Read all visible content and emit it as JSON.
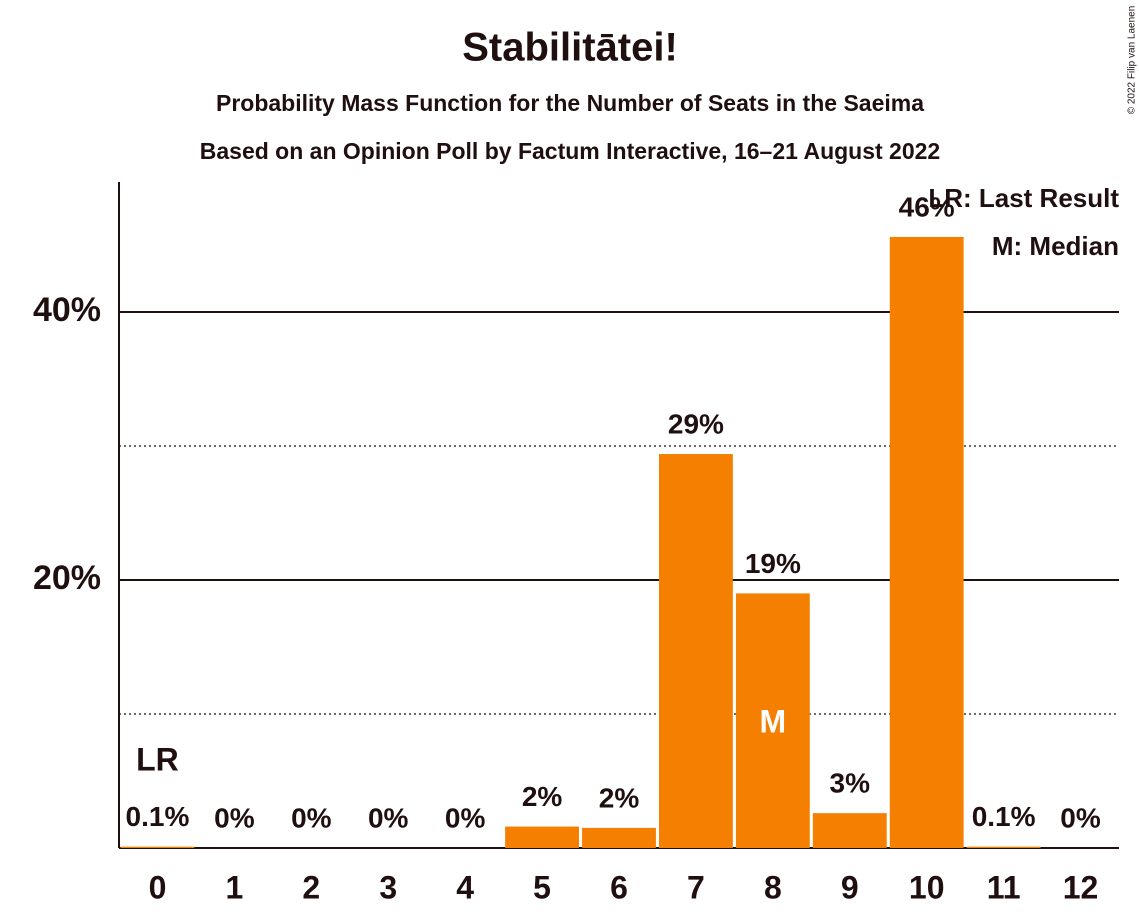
{
  "chart_data": {
    "type": "bar",
    "title": "Stabilitātei!",
    "subtitle": "Probability Mass Function for the Number of Seats in the Saeima",
    "subtitle2": "Based on an Opinion Poll by Factum Interactive, 16–21 August 2022",
    "copyright": "© 2022 Filip van Laenen",
    "categories": [
      "0",
      "1",
      "2",
      "3",
      "4",
      "5",
      "6",
      "7",
      "8",
      "9",
      "10",
      "11",
      "12"
    ],
    "values": [
      0.1,
      0,
      0,
      0,
      0,
      1.6,
      1.5,
      29.4,
      19.0,
      2.6,
      45.6,
      0.1,
      0
    ],
    "value_labels": [
      "0.1%",
      "0%",
      "0%",
      "0%",
      "0%",
      "2%",
      "2%",
      "29%",
      "19%",
      "3%",
      "46%",
      "0.1%",
      "0%"
    ],
    "color": "#f57f00",
    "ylim": [
      0,
      50
    ],
    "yticks": [
      {
        "value": 20,
        "label": "20%"
      },
      {
        "value": 40,
        "label": "40%"
      }
    ],
    "minor_yticks": [
      10,
      30
    ],
    "grid": true,
    "last_result": {
      "index": 0,
      "label": "LR"
    },
    "median": {
      "index": 8,
      "label": "M"
    },
    "legend": [
      "LR: Last Result",
      "M: Median"
    ],
    "legend_position": "upper right"
  }
}
